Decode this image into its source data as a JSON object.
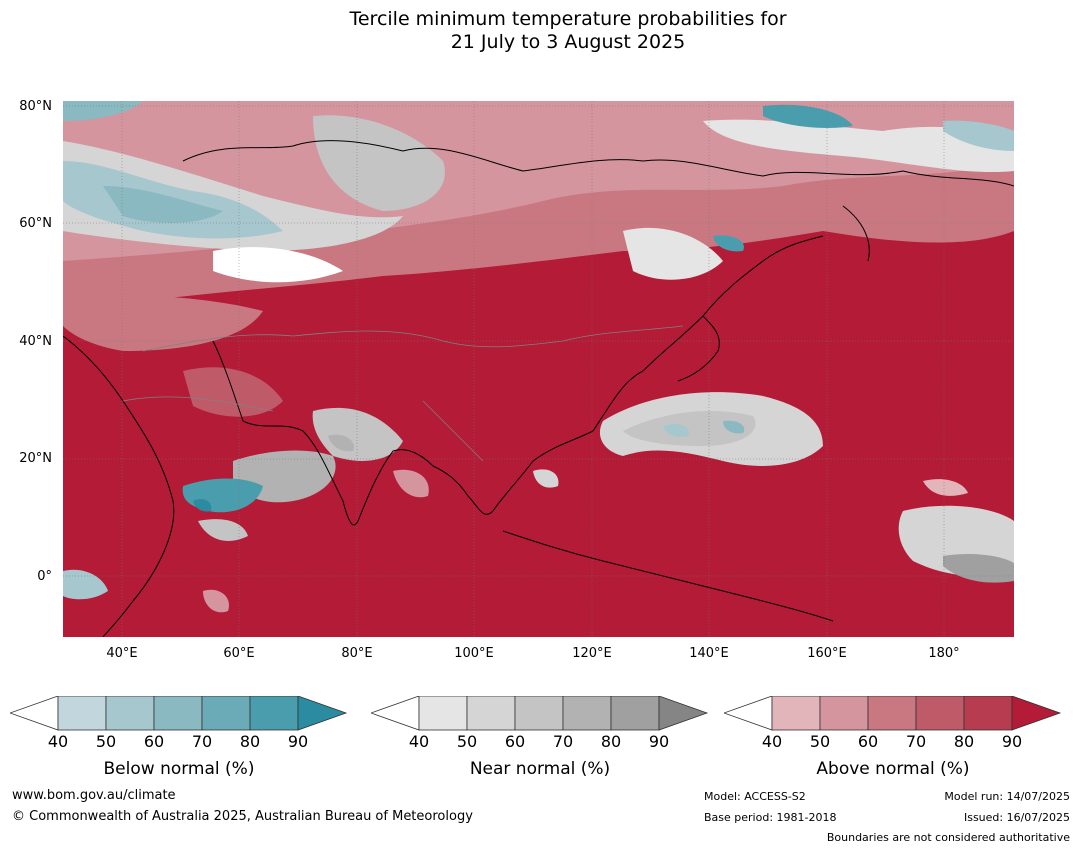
{
  "title_line1": "Tercile minimum temperature probabilities for",
  "title_line2": "21 July to 3 August 2025",
  "lat_labels": [
    "80°N",
    "60°N",
    "40°N",
    "20°N",
    "0°"
  ],
  "lon_labels": [
    "40°E",
    "60°E",
    "80°E",
    "100°E",
    "120°E",
    "140°E",
    "160°E",
    "180°"
  ],
  "colorbars": [
    {
      "title": "Below normal (%)",
      "ticks": [
        "40",
        "50",
        "60",
        "70",
        "80",
        "90"
      ],
      "colors": [
        "#c1d6dd",
        "#a7c7ce",
        "#8ab9c2",
        "#6aabb7",
        "#4a9dac",
        "#2b8ba0"
      ]
    },
    {
      "title": "Near normal (%)",
      "ticks": [
        "40",
        "50",
        "60",
        "70",
        "80",
        "90"
      ],
      "colors": [
        "#e5e5e5",
        "#d5d5d5",
        "#c4c4c4",
        "#b2b2b2",
        "#a0a0a0",
        "#858585"
      ]
    },
    {
      "title": "Above normal (%)",
      "ticks": [
        "40",
        "50",
        "60",
        "70",
        "80",
        "90"
      ],
      "colors": [
        "#e2b5bb",
        "#d5959e",
        "#c97882",
        "#bf5b69",
        "#b83c50",
        "#b31b37"
      ]
    }
  ],
  "footer": {
    "website": "www.bom.gov.au/climate",
    "copyright": "© Commonwealth of Australia 2025, Australian Bureau of Meteorology",
    "model": "Model: ACCESS-S2",
    "base_period": "Base period: 1981-2018",
    "model_run": "Model run: 14/07/2025",
    "issued": "Issued: 16/07/2025",
    "boundaries": "Boundaries are not considered authoritative"
  }
}
